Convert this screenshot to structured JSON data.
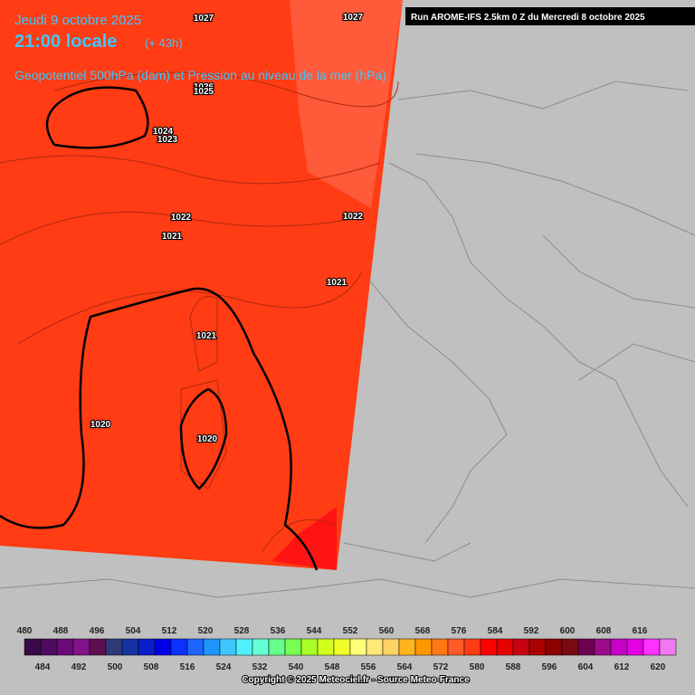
{
  "header": {
    "date": "Jeudi 9 octobre 2025",
    "time": "21:00 locale",
    "lead": "(+ 43h)",
    "subtitle": "Geopotentiel 500hPa (dam) et Pression au niveau de la mer (hPa)",
    "run": "Run AROME-IFS 2.5km 0 Z du Mercredi 8 octobre 2025"
  },
  "isobar_labels": [
    "1027",
    "1027",
    "1026",
    "1025",
    "1024",
    "1023",
    "1022",
    "1021",
    "1022",
    "1021",
    "1021",
    "1020",
    "1020"
  ],
  "colorbar": {
    "top_labels": [
      "480",
      "488",
      "496",
      "504",
      "512",
      "520",
      "528",
      "536",
      "544",
      "552",
      "560",
      "568",
      "576",
      "584",
      "592",
      "600",
      "608",
      "616"
    ],
    "bottom_labels": [
      "484",
      "492",
      "500",
      "508",
      "516",
      "524",
      "532",
      "540",
      "548",
      "556",
      "564",
      "572",
      "580",
      "588",
      "596",
      "604",
      "612",
      "620"
    ],
    "colors": [
      "#3a0a48",
      "#4d0a60",
      "#6a0a78",
      "#82128a",
      "#5a1050",
      "#303878",
      "#1432a0",
      "#0a1ec8",
      "#0000e6",
      "#0a32ff",
      "#1e64ff",
      "#1e96ff",
      "#3cc8ff",
      "#50f0ff",
      "#64ffd2",
      "#64ff8c",
      "#78ff50",
      "#aaff28",
      "#d2ff1e",
      "#f0ff28",
      "#ffff78",
      "#ffe878",
      "#ffd264",
      "#ffb41e",
      "#ff9600",
      "#ff7814",
      "#ff5a28",
      "#ff3c14",
      "#ff0000",
      "#e60000",
      "#c80014",
      "#aa0000",
      "#8c0000",
      "#780a14",
      "#6e0050",
      "#9a0a8a",
      "#c800c8",
      "#e600e6",
      "#ff32ff",
      "#f078f0"
    ]
  },
  "copyright": "Copyright © 2025 Meteociel.fr - Source Meteo-France"
}
